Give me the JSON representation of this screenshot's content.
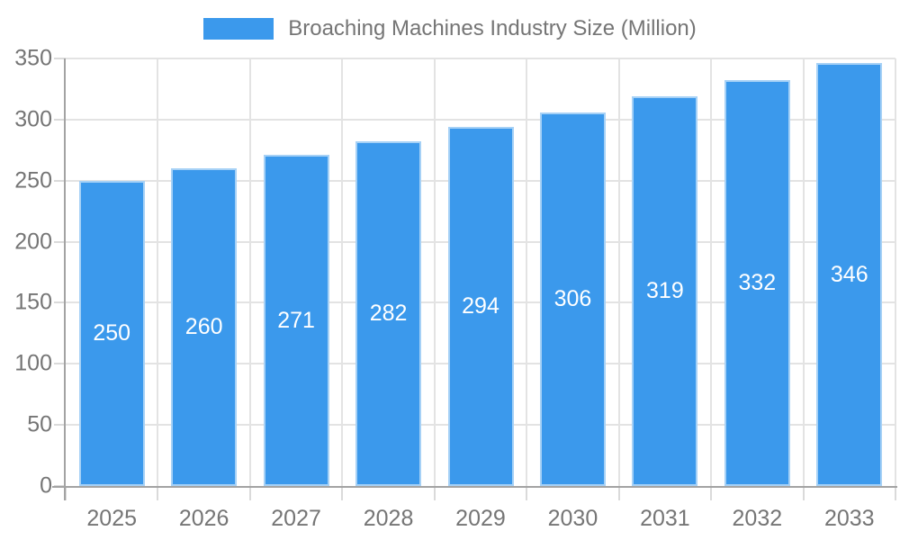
{
  "chart_data": {
    "type": "bar",
    "title": "Broaching Machines Industry Size (Million)",
    "legend": {
      "position": "top",
      "entries": [
        "Broaching Machines Industry Size (Million)"
      ]
    },
    "categories": [
      "2025",
      "2026",
      "2027",
      "2028",
      "2029",
      "2030",
      "2031",
      "2032",
      "2033"
    ],
    "values": [
      250,
      260,
      271,
      282,
      294,
      306,
      319,
      332,
      346
    ],
    "data_labels": [
      "250",
      "260",
      "271",
      "282",
      "294",
      "306",
      "319",
      "332",
      "346"
    ],
    "xlabel": "",
    "ylabel": "",
    "ylim": [
      0,
      350
    ],
    "ytick_step": 50,
    "yticks": [
      "0",
      "50",
      "100",
      "150",
      "200",
      "250",
      "300",
      "350"
    ],
    "grid": "on",
    "colors": {
      "bar": "#3b99ec",
      "bar_value_label": "#ffffff",
      "text": "#757575",
      "gridline": "#e3e3e3",
      "axis_line": "#a3a3a3",
      "tick_mark": "#dadada"
    }
  }
}
